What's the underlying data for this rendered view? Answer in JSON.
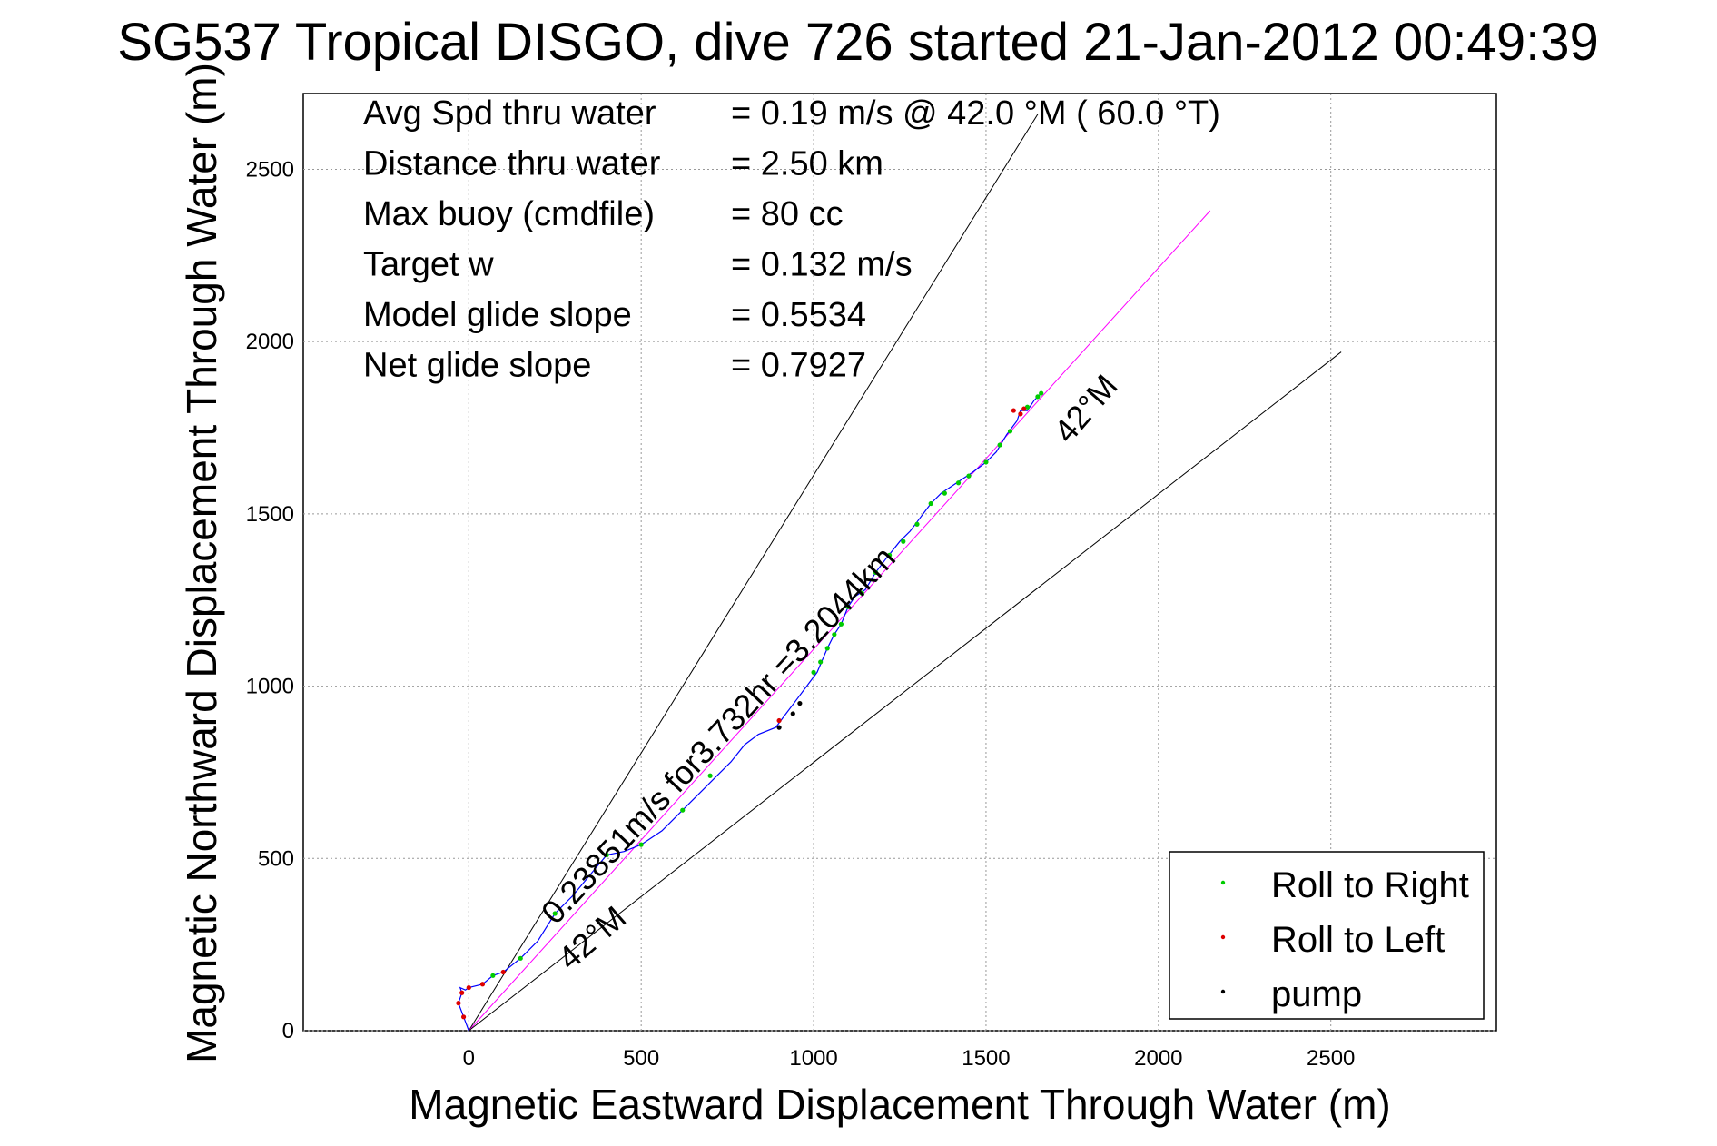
{
  "chart_data": {
    "type": "scatter",
    "title": "SG537 Tropical DISGO, dive 726 started 21-Jan-2012 00:49:39",
    "xlabel": "Magnetic Eastward Displacement Through Water (m)",
    "ylabel": "Magnetic Northward Displacement Through Water (m)",
    "xlim": [
      -480,
      2980
    ],
    "ylim": [
      0,
      2720
    ],
    "x_ticks": [
      0,
      500,
      1000,
      1500,
      2000,
      2500
    ],
    "y_ticks": [
      0,
      500,
      1000,
      1500,
      2000,
      2500
    ],
    "grid": true,
    "legend_position": "bottom-right",
    "info_rows": [
      {
        "label": "Avg Spd thru water",
        "value": "=  0.19 m/s @  42.0 °M ( 60.0 °T)"
      },
      {
        "label": "Distance thru water",
        "value": "=  2.50 km"
      },
      {
        "label": "Max buoy (cmdfile)",
        "value": "= 80 cc"
      },
      {
        "label": "Target w",
        "value": "= 0.132 m/s"
      },
      {
        "label": "Model glide slope",
        "value": "= 0.5534"
      },
      {
        "label": "Net glide slope",
        "value": "= 0.7927"
      }
    ],
    "annotations": {
      "speed_label": "0.23851m/s for3.732hr =3.2044km",
      "heading_label_upper": "42°M",
      "heading_label_lower": "42°M"
    },
    "reference_lines": [
      {
        "name": "upper bound",
        "x": [
          0,
          1650
        ],
        "y": [
          0,
          2660
        ],
        "color": "#000000"
      },
      {
        "name": "heading",
        "x": [
          0,
          2150
        ],
        "y": [
          0,
          2380
        ],
        "color": "#ff00ff"
      },
      {
        "name": "lower bound",
        "x": [
          0,
          2530
        ],
        "y": [
          0,
          1970
        ],
        "color": "#000000"
      }
    ],
    "track": {
      "x": [
        0,
        -15,
        -30,
        -20,
        -25,
        -10,
        0,
        40,
        70,
        100,
        150,
        200,
        250,
        300,
        350,
        400,
        450,
        500,
        560,
        620,
        680,
        720,
        760,
        800,
        840,
        890,
        920,
        950,
        980,
        1010,
        1040,
        1060,
        1080,
        1100,
        1120,
        1150,
        1180,
        1210,
        1250,
        1280,
        1310,
        1340,
        1370,
        1400,
        1430,
        1460,
        1500,
        1530,
        1560,
        1590,
        1600,
        1620,
        1640,
        1660
      ],
      "y": [
        0,
        40,
        80,
        110,
        125,
        118,
        125,
        135,
        160,
        170,
        210,
        260,
        340,
        390,
        450,
        510,
        520,
        540,
        580,
        640,
        700,
        740,
        780,
        830,
        860,
        880,
        920,
        960,
        1000,
        1040,
        1110,
        1150,
        1180,
        1230,
        1260,
        1280,
        1330,
        1370,
        1420,
        1450,
        1490,
        1530,
        1560,
        1580,
        1600,
        1620,
        1650,
        1680,
        1730,
        1770,
        1800,
        1800,
        1830,
        1850
      ],
      "color": "#0000ff"
    },
    "series": [
      {
        "name": "Roll to Right",
        "color": "#00cc00",
        "x": [
          70,
          150,
          250,
          400,
          500,
          620,
          700,
          1000,
          1020,
          1040,
          1060,
          1080,
          1100,
          1140,
          1180,
          1220,
          1260,
          1300,
          1340,
          1380,
          1420,
          1450,
          1500,
          1540,
          1570,
          1620,
          1650,
          1660
        ],
        "y": [
          160,
          210,
          340,
          510,
          540,
          640,
          740,
          1040,
          1070,
          1110,
          1150,
          1180,
          1230,
          1270,
          1330,
          1380,
          1420,
          1470,
          1530,
          1560,
          1590,
          1610,
          1650,
          1700,
          1740,
          1810,
          1840,
          1850
        ]
      },
      {
        "name": "Roll to Left",
        "color": "#dd0000",
        "x": [
          -15,
          -30,
          -20,
          0,
          40,
          100,
          900,
          1580,
          1600,
          1610
        ],
        "y": [
          40,
          80,
          110,
          125,
          135,
          170,
          900,
          1800,
          1790,
          1805
        ]
      },
      {
        "name": "pump",
        "color": "#000000",
        "x": [
          900,
          940,
          960
        ],
        "y": [
          880,
          920,
          950
        ]
      }
    ]
  }
}
